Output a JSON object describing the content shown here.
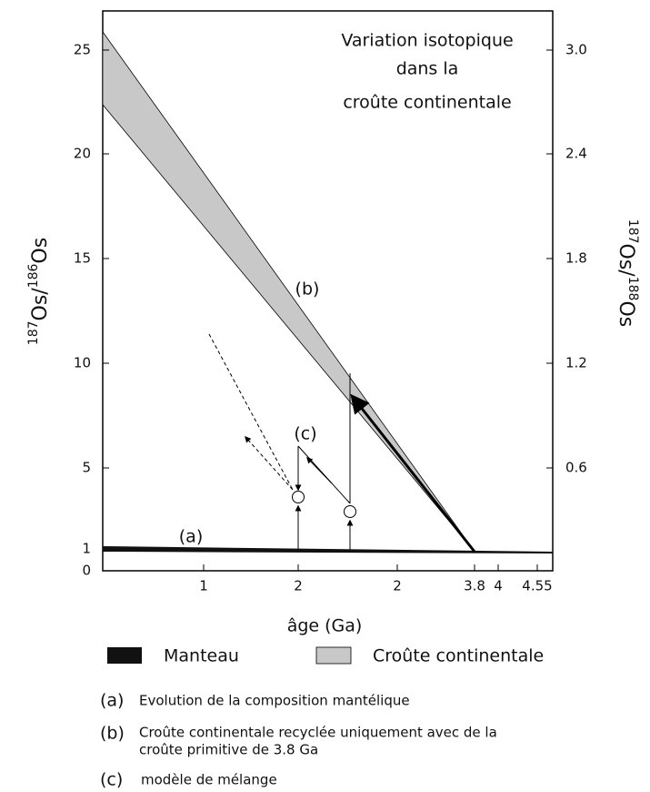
{
  "title": [
    "Variation isotopique",
    "dans la",
    "croûte continentale"
  ],
  "left_axis": {
    "label": {
      "sup1": "187",
      "base1": "Os/",
      "sup2": "186",
      "base2": "Os"
    },
    "ticks": [
      "25",
      "20",
      "15",
      "10",
      "5",
      "1",
      "0"
    ]
  },
  "right_axis": {
    "label": {
      "sup1": "187",
      "base1": "Os/",
      "sup2": "188",
      "base2": "Os"
    },
    "ticks": [
      "3.0",
      "2.4",
      "1.8",
      "1.2",
      "0.6"
    ]
  },
  "bottom_axis": {
    "label": "âge (Ga)",
    "ticks": [
      "1",
      "2",
      "2",
      "3.8",
      "4",
      "4.55"
    ]
  },
  "curve_labels": [
    "(a)",
    "(b)",
    "(c)"
  ],
  "legend": [
    "Manteau",
    "Croûte continentale"
  ],
  "notes": [
    {
      "key": "(a)",
      "text": [
        "Evolution de la composition mantélique"
      ]
    },
    {
      "key": "(b)",
      "text": [
        "Croûte continentale recyclée uniquement avec de la",
        "croûte primitive de 3.8 Ga"
      ]
    },
    {
      "key": "(c)",
      "text": [
        "modèle de mélange"
      ]
    }
  ]
}
